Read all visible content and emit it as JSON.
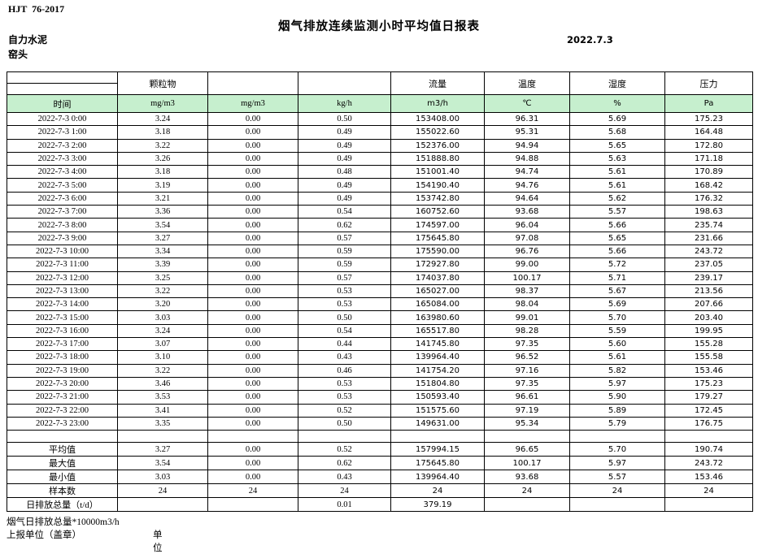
{
  "meta": {
    "standard_code": "HJT  76-2017",
    "title": "烟气排放连续监测小时平均值日报表",
    "company": "自力水泥",
    "station": "窑头",
    "date": "2022.7.3"
  },
  "colors": {
    "unit_row_bg": "#c6efce",
    "grid_line": "#000000"
  },
  "table": {
    "group_headers": [
      "",
      "颗粒物",
      "",
      "",
      "流量",
      "温度",
      "湿度",
      "压力"
    ],
    "unit_row": [
      "时间",
      "mg/m3",
      "mg/m3",
      "kg/h",
      "m3/h",
      "℃",
      "%",
      "Pa"
    ],
    "hourly_rows": [
      [
        "2022-7-3 0:00",
        "3.24",
        "0.00",
        "0.50",
        "153408.00",
        "96.31",
        "5.69",
        "175.23"
      ],
      [
        "2022-7-3 1:00",
        "3.18",
        "0.00",
        "0.49",
        "155022.60",
        "95.31",
        "5.68",
        "164.48"
      ],
      [
        "2022-7-3 2:00",
        "3.22",
        "0.00",
        "0.49",
        "152376.00",
        "94.94",
        "5.65",
        "172.80"
      ],
      [
        "2022-7-3 3:00",
        "3.26",
        "0.00",
        "0.49",
        "151888.80",
        "94.88",
        "5.63",
        "171.18"
      ],
      [
        "2022-7-3 4:00",
        "3.18",
        "0.00",
        "0.48",
        "151001.40",
        "94.74",
        "5.61",
        "170.89"
      ],
      [
        "2022-7-3 5:00",
        "3.19",
        "0.00",
        "0.49",
        "154190.40",
        "94.76",
        "5.61",
        "168.42"
      ],
      [
        "2022-7-3 6:00",
        "3.21",
        "0.00",
        "0.49",
        "153742.80",
        "94.64",
        "5.62",
        "176.32"
      ],
      [
        "2022-7-3 7:00",
        "3.36",
        "0.00",
        "0.54",
        "160752.60",
        "93.68",
        "5.57",
        "198.63"
      ],
      [
        "2022-7-3 8:00",
        "3.54",
        "0.00",
        "0.62",
        "174597.00",
        "96.04",
        "5.66",
        "235.74"
      ],
      [
        "2022-7-3 9:00",
        "3.27",
        "0.00",
        "0.57",
        "175645.80",
        "97.08",
        "5.65",
        "231.66"
      ],
      [
        "2022-7-3 10:00",
        "3.34",
        "0.00",
        "0.59",
        "175590.00",
        "96.76",
        "5.66",
        "243.72"
      ],
      [
        "2022-7-3 11:00",
        "3.39",
        "0.00",
        "0.59",
        "172927.80",
        "99.00",
        "5.72",
        "237.05"
      ],
      [
        "2022-7-3 12:00",
        "3.25",
        "0.00",
        "0.57",
        "174037.80",
        "100.17",
        "5.71",
        "239.17"
      ],
      [
        "2022-7-3 13:00",
        "3.22",
        "0.00",
        "0.53",
        "165027.00",
        "98.37",
        "5.67",
        "213.56"
      ],
      [
        "2022-7-3 14:00",
        "3.20",
        "0.00",
        "0.53",
        "165084.00",
        "98.04",
        "5.69",
        "207.66"
      ],
      [
        "2022-7-3 15:00",
        "3.03",
        "0.00",
        "0.50",
        "163980.60",
        "99.01",
        "5.70",
        "203.40"
      ],
      [
        "2022-7-3 16:00",
        "3.24",
        "0.00",
        "0.54",
        "165517.80",
        "98.28",
        "5.59",
        "199.95"
      ],
      [
        "2022-7-3 17:00",
        "3.07",
        "0.00",
        "0.44",
        "141745.80",
        "97.35",
        "5.60",
        "155.28"
      ],
      [
        "2022-7-3 18:00",
        "3.10",
        "0.00",
        "0.43",
        "139964.40",
        "96.52",
        "5.61",
        "155.58"
      ],
      [
        "2022-7-3 19:00",
        "3.22",
        "0.00",
        "0.46",
        "141754.20",
        "97.16",
        "5.82",
        "153.46"
      ],
      [
        "2022-7-3 20:00",
        "3.46",
        "0.00",
        "0.53",
        "151804.80",
        "97.35",
        "5.97",
        "175.23"
      ],
      [
        "2022-7-3 21:00",
        "3.53",
        "0.00",
        "0.53",
        "150593.40",
        "96.61",
        "5.90",
        "179.27"
      ],
      [
        "2022-7-3 22:00",
        "3.41",
        "0.00",
        "0.52",
        "151575.60",
        "97.19",
        "5.89",
        "172.45"
      ],
      [
        "2022-7-3 23:00",
        "3.35",
        "0.00",
        "0.50",
        "149631.00",
        "95.34",
        "5.79",
        "176.75"
      ]
    ],
    "summary_rows": [
      {
        "label": "平均值",
        "values": [
          "3.27",
          "0.00",
          "0.52",
          "157994.15",
          "96.65",
          "5.70",
          "190.74"
        ]
      },
      {
        "label": "最大值",
        "values": [
          "3.54",
          "0.00",
          "0.62",
          "175645.80",
          "100.17",
          "5.97",
          "243.72"
        ]
      },
      {
        "label": "最小值",
        "values": [
          "3.03",
          "0.00",
          "0.43",
          "139964.40",
          "93.68",
          "5.57",
          "153.46"
        ]
      },
      {
        "label": "样本数",
        "values": [
          "24",
          "24",
          "24",
          "24",
          "24",
          "24",
          "24"
        ]
      }
    ],
    "daily_total_row": {
      "label": "日排放总量（t/d）",
      "values": [
        "",
        "",
        "0.01",
        "379.19",
        "",
        "",
        ""
      ]
    }
  },
  "footer": {
    "note1": "烟气日排放总量*10000m3/h",
    "note2_left": "上报单位（盖章）",
    "note2_right": "单位"
  }
}
